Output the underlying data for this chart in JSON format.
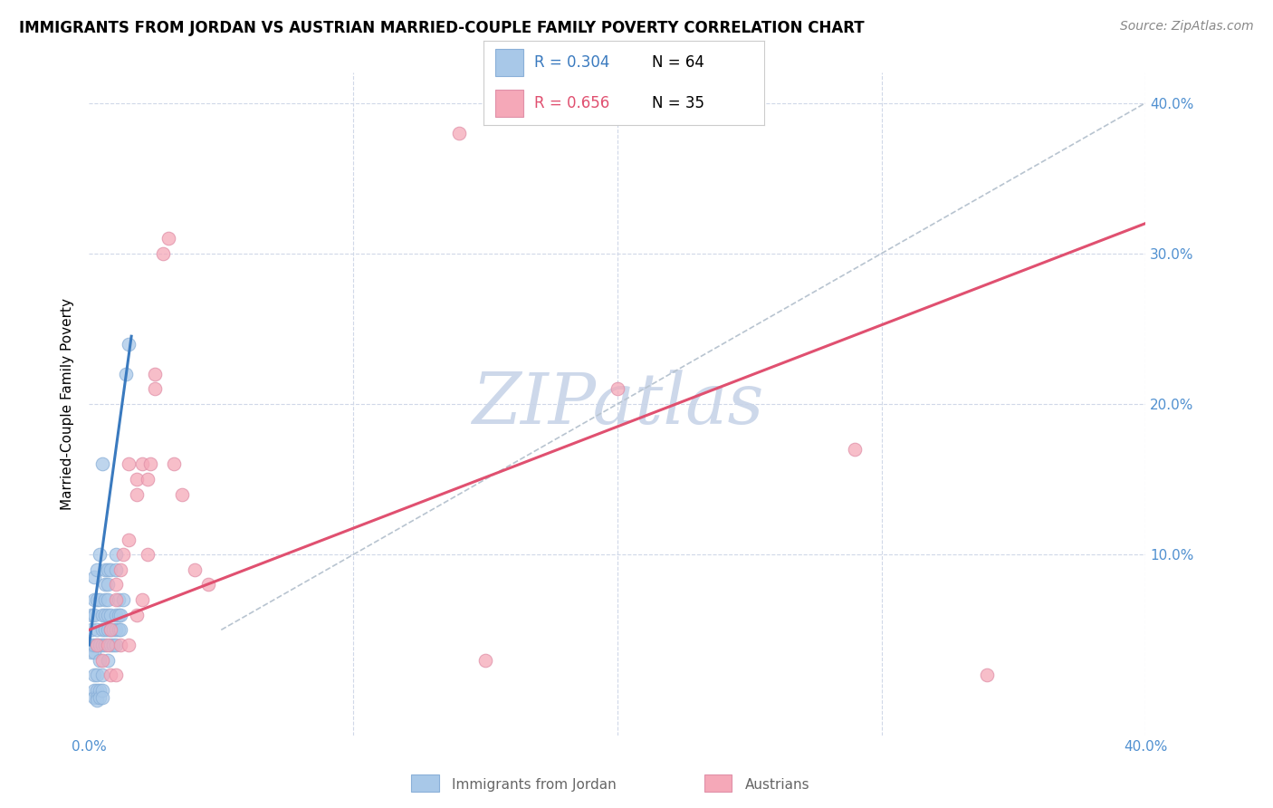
{
  "title": "IMMIGRANTS FROM JORDAN VS AUSTRIAN MARRIED-COUPLE FAMILY POVERTY CORRELATION CHART",
  "source": "Source: ZipAtlas.com",
  "ylabel": "Married-Couple Family Poverty",
  "xlim": [
    0.0,
    0.4
  ],
  "ylim": [
    -0.02,
    0.42
  ],
  "xticks": [
    0.0,
    0.1,
    0.2,
    0.3,
    0.4
  ],
  "xticklabels_bottom": [
    "0.0%",
    "",
    "",
    "",
    "40.0%"
  ],
  "yticks_right": [
    0.1,
    0.2,
    0.3,
    0.4
  ],
  "yticklabels_right": [
    "10.0%",
    "20.0%",
    "30.0%",
    "40.0%"
  ],
  "R_jordan": 0.304,
  "N_jordan": 64,
  "R_austrians": 0.656,
  "N_austrians": 35,
  "jordan_color": "#a8c8e8",
  "austrians_color": "#f5a8b8",
  "jordan_line_color": "#3a7abf",
  "austrians_line_color": "#e05070",
  "diag_line_color": "#b8c4d0",
  "watermark_color": "#c8d4e8",
  "background_color": "#ffffff",
  "grid_color": "#d0d8e8",
  "title_fontsize": 12,
  "source_fontsize": 10,
  "tick_color": "#5090d0",
  "legend_label_1": "Immigrants from Jordan",
  "legend_label_2": "Austrians",
  "jordan_scatter": [
    [
      0.001,
      0.035
    ],
    [
      0.001,
      0.04
    ],
    [
      0.001,
      0.05
    ],
    [
      0.001,
      0.06
    ],
    [
      0.002,
      0.02
    ],
    [
      0.002,
      0.035
    ],
    [
      0.002,
      0.04
    ],
    [
      0.002,
      0.06
    ],
    [
      0.002,
      0.07
    ],
    [
      0.002,
      0.085
    ],
    [
      0.002,
      0.01
    ],
    [
      0.002,
      0.005
    ],
    [
      0.003,
      0.02
    ],
    [
      0.003,
      0.04
    ],
    [
      0.003,
      0.05
    ],
    [
      0.003,
      0.07
    ],
    [
      0.003,
      0.09
    ],
    [
      0.003,
      0.01
    ],
    [
      0.003,
      0.005
    ],
    [
      0.003,
      0.003
    ],
    [
      0.004,
      0.03
    ],
    [
      0.004,
      0.04
    ],
    [
      0.004,
      0.07
    ],
    [
      0.004,
      0.1
    ],
    [
      0.004,
      0.01
    ],
    [
      0.004,
      0.005
    ],
    [
      0.005,
      0.02
    ],
    [
      0.005,
      0.04
    ],
    [
      0.005,
      0.05
    ],
    [
      0.005,
      0.06
    ],
    [
      0.005,
      0.16
    ],
    [
      0.005,
      0.01
    ],
    [
      0.005,
      0.005
    ],
    [
      0.006,
      0.04
    ],
    [
      0.006,
      0.05
    ],
    [
      0.006,
      0.06
    ],
    [
      0.006,
      0.07
    ],
    [
      0.006,
      0.08
    ],
    [
      0.006,
      0.09
    ],
    [
      0.007,
      0.03
    ],
    [
      0.007,
      0.05
    ],
    [
      0.007,
      0.06
    ],
    [
      0.007,
      0.07
    ],
    [
      0.007,
      0.08
    ],
    [
      0.007,
      0.09
    ],
    [
      0.008,
      0.04
    ],
    [
      0.008,
      0.05
    ],
    [
      0.008,
      0.06
    ],
    [
      0.008,
      0.09
    ],
    [
      0.009,
      0.04
    ],
    [
      0.009,
      0.05
    ],
    [
      0.01,
      0.04
    ],
    [
      0.01,
      0.05
    ],
    [
      0.01,
      0.06
    ],
    [
      0.01,
      0.09
    ],
    [
      0.01,
      0.1
    ],
    [
      0.011,
      0.05
    ],
    [
      0.011,
      0.06
    ],
    [
      0.011,
      0.07
    ],
    [
      0.012,
      0.05
    ],
    [
      0.012,
      0.06
    ],
    [
      0.013,
      0.07
    ],
    [
      0.014,
      0.22
    ],
    [
      0.015,
      0.24
    ]
  ],
  "austrians_scatter": [
    [
      0.003,
      0.04
    ],
    [
      0.005,
      0.03
    ],
    [
      0.007,
      0.04
    ],
    [
      0.008,
      0.05
    ],
    [
      0.01,
      0.07
    ],
    [
      0.01,
      0.08
    ],
    [
      0.012,
      0.09
    ],
    [
      0.013,
      0.1
    ],
    [
      0.015,
      0.11
    ],
    [
      0.015,
      0.16
    ],
    [
      0.018,
      0.14
    ],
    [
      0.018,
      0.15
    ],
    [
      0.02,
      0.16
    ],
    [
      0.022,
      0.15
    ],
    [
      0.023,
      0.16
    ],
    [
      0.025,
      0.21
    ],
    [
      0.025,
      0.22
    ],
    [
      0.028,
      0.3
    ],
    [
      0.03,
      0.31
    ],
    [
      0.032,
      0.16
    ],
    [
      0.035,
      0.14
    ],
    [
      0.04,
      0.09
    ],
    [
      0.045,
      0.08
    ],
    [
      0.008,
      0.02
    ],
    [
      0.01,
      0.02
    ],
    [
      0.012,
      0.04
    ],
    [
      0.015,
      0.04
    ],
    [
      0.018,
      0.06
    ],
    [
      0.02,
      0.07
    ],
    [
      0.022,
      0.1
    ],
    [
      0.14,
      0.38
    ],
    [
      0.2,
      0.21
    ],
    [
      0.29,
      0.17
    ],
    [
      0.15,
      0.03
    ],
    [
      0.34,
      0.02
    ]
  ],
  "jordan_trend_x": [
    0.0,
    0.016
  ],
  "jordan_trend_y": [
    0.04,
    0.245
  ],
  "austrians_trend_x": [
    0.0,
    0.4
  ],
  "austrians_trend_y": [
    0.05,
    0.32
  ],
  "diag_trend_x": [
    0.05,
    0.4
  ],
  "diag_trend_y": [
    0.05,
    0.4
  ]
}
